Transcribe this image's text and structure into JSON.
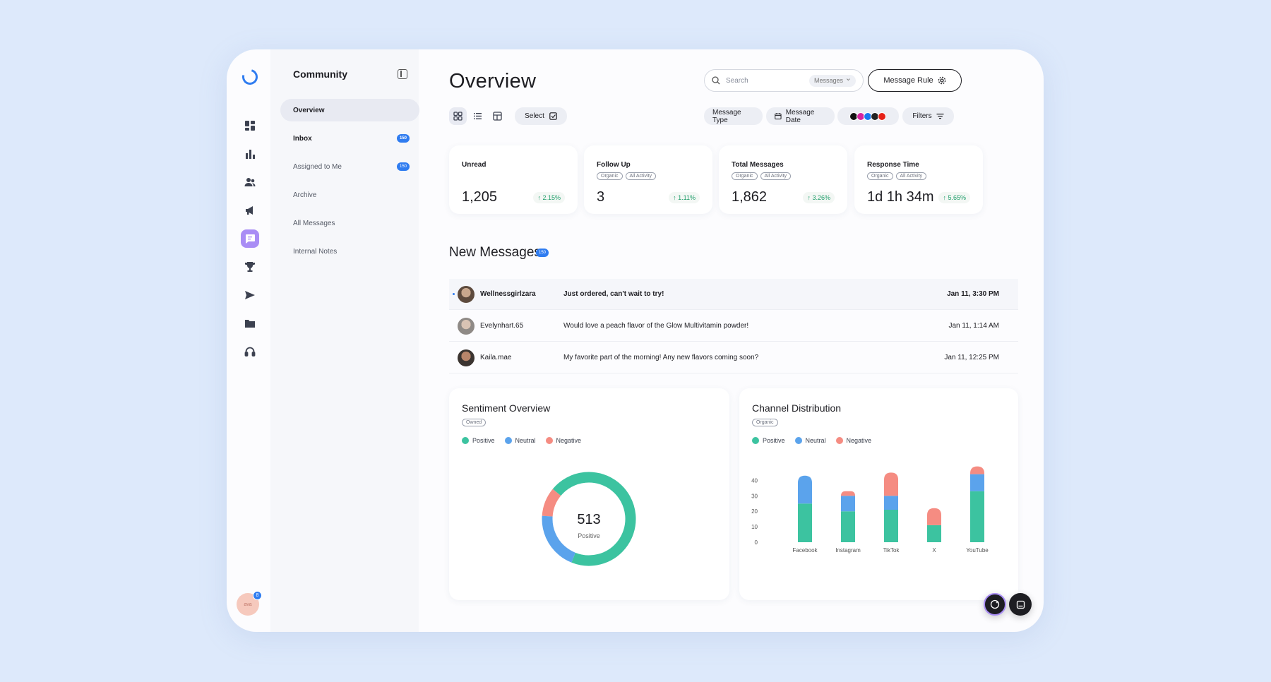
{
  "sidebar": {
    "title": "Community",
    "items": [
      {
        "label": "Overview"
      },
      {
        "label": "Inbox",
        "badge": "150"
      },
      {
        "label": "Assigned to Me",
        "badge": "150"
      },
      {
        "label": "Archive"
      },
      {
        "label": "All Messages"
      },
      {
        "label": "Internal Notes"
      }
    ]
  },
  "rail": {
    "icons": [
      "dashboard-icon",
      "bar-chart-icon",
      "users-icon",
      "megaphone-icon",
      "chat-icon",
      "trophy-icon",
      "send-icon",
      "folder-icon",
      "headset-icon"
    ],
    "avatar": {
      "label": "ava",
      "badge": "8"
    }
  },
  "header": {
    "title": "Overview",
    "search_placeholder": "Search",
    "search_scope": "Messages",
    "rule_button": "Message Rule"
  },
  "toolbar": {
    "select_label": "Select",
    "message_type": "Message Type",
    "message_date": "Message Date",
    "filters": "Filters",
    "social_icons": [
      "tiktok-icon",
      "instagram-icon",
      "facebook-icon",
      "x-icon",
      "youtube-icon"
    ]
  },
  "stats": [
    {
      "label": "Unread",
      "value": "1,205",
      "delta": "2.15%",
      "tags": []
    },
    {
      "label": "Follow Up",
      "value": "3",
      "delta": "1.11%",
      "tags": [
        "Organic",
        "All Activity"
      ]
    },
    {
      "label": "Total Messages",
      "value": "1,862",
      "delta": "3.26%",
      "tags": [
        "Organic",
        "All Activity"
      ]
    },
    {
      "label": "Response Time",
      "value": "1d 1h 34m",
      "delta": "5.65%",
      "tags": [
        "Organic",
        "All Activity"
      ]
    }
  ],
  "messages_section": {
    "title": "New Messages",
    "badge": "150"
  },
  "messages": [
    {
      "user": "Wellnessgirlzara",
      "text": "Just ordered, can't wait to try!",
      "time": "Jan 11, 3:30 PM",
      "unread": true
    },
    {
      "user": "Evelynhart.65",
      "text": "Would love a peach flavor of the Glow Multivitamin powder!",
      "time": "Jan 11, 1:14 AM",
      "unread": false
    },
    {
      "user": "Kaila.mae",
      "text": "My favorite part of the morning! Any new flavors coming soon?",
      "time": "Jan 11, 12:25 PM",
      "unread": false
    }
  ],
  "colors": {
    "positive": "#3cc3a0",
    "neutral": "#5ba3ec",
    "negative": "#f58c82",
    "accent": "#2f7cf0"
  },
  "sentiment": {
    "title": "Sentiment Overview",
    "tag": "Owned",
    "legend": [
      "Positive",
      "Neutral",
      "Negative"
    ],
    "center_value": "513",
    "center_label": "Positive"
  },
  "channel": {
    "title": "Channel Distribution",
    "tag": "Organic",
    "legend": [
      "Positive",
      "Neutral",
      "Negative"
    ]
  },
  "chart_data": [
    {
      "type": "pie",
      "categories": [
        "Positive",
        "Neutral",
        "Negative"
      ],
      "values": [
        70,
        20,
        10
      ]
    },
    {
      "type": "bar",
      "categories": [
        "Facebook",
        "Instagram",
        "TikTok",
        "X",
        "YouTube"
      ],
      "series": [
        {
          "name": "Positive",
          "values": [
            25,
            20,
            21,
            11,
            33
          ]
        },
        {
          "name": "Neutral",
          "values": [
            18,
            10,
            9,
            0,
            11
          ]
        },
        {
          "name": "Negative",
          "values": [
            0,
            3,
            15,
            11,
            5
          ]
        }
      ],
      "yticks": [
        0,
        10,
        20,
        30,
        40
      ],
      "ylim": [
        0,
        42
      ]
    }
  ]
}
